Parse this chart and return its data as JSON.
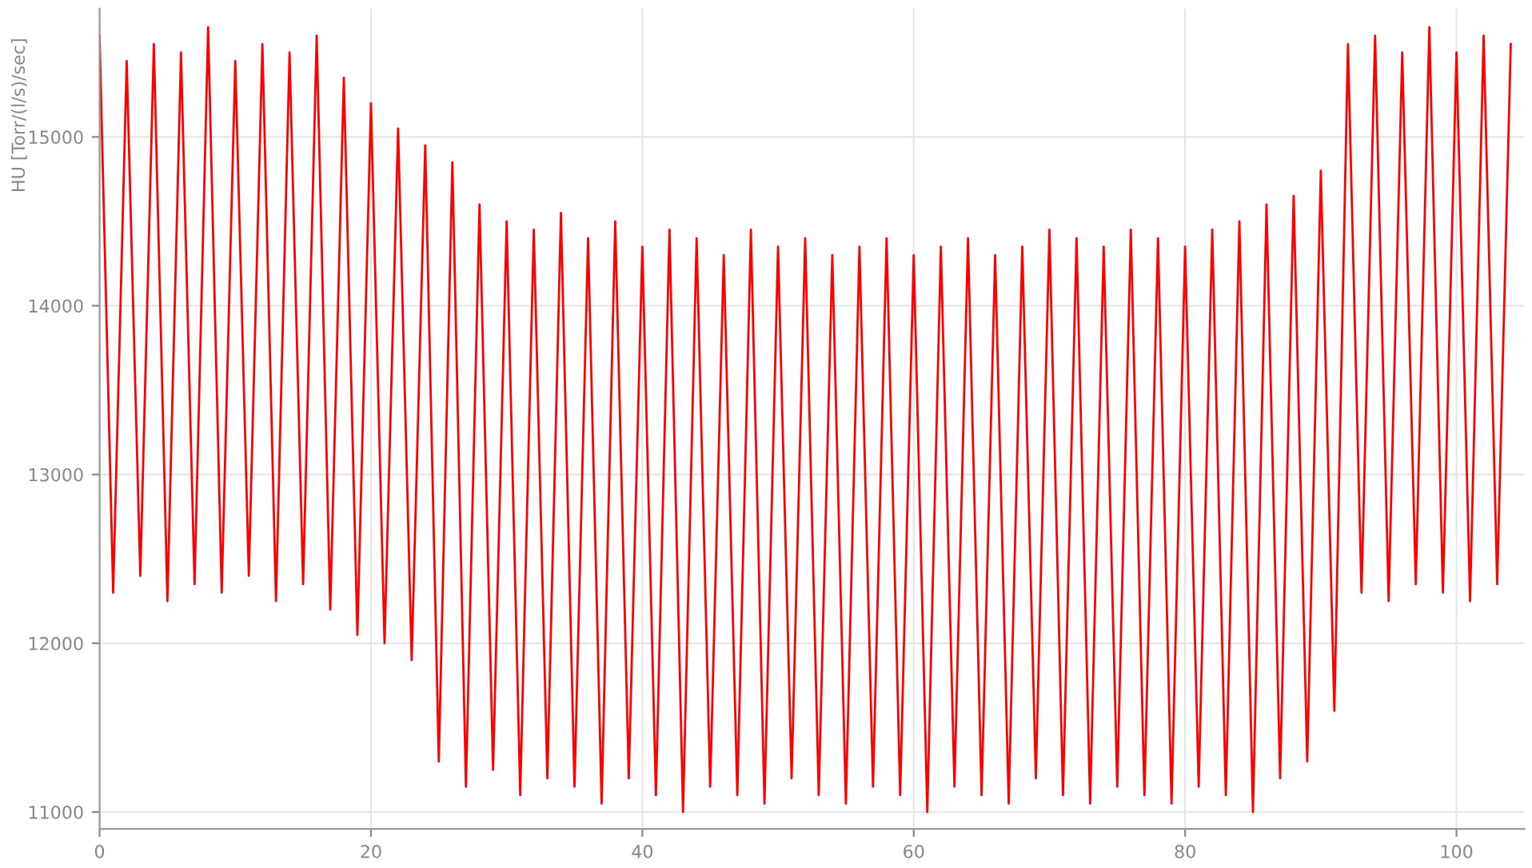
{
  "chart_data": {
    "type": "line",
    "ylabel": "HU [Torr/(l/s)/sec]",
    "x": [
      0,
      1,
      2,
      3,
      4,
      5,
      6,
      7,
      8,
      9,
      10,
      11,
      12,
      13,
      14,
      15,
      16,
      17,
      18,
      19,
      20,
      21,
      22,
      23,
      24,
      25,
      26,
      27,
      28,
      29,
      30,
      31,
      32,
      33,
      34,
      35,
      36,
      37,
      38,
      39,
      40,
      41,
      42,
      43,
      44,
      45,
      46,
      47,
      48,
      49,
      50,
      51,
      52,
      53,
      54,
      55,
      56,
      57,
      58,
      59,
      60,
      61,
      62,
      63,
      64,
      65,
      66,
      67,
      68,
      69,
      70,
      71,
      72,
      73,
      74,
      75,
      76,
      77,
      78,
      79,
      80,
      81,
      82,
      83,
      84,
      85,
      86,
      87,
      88,
      89,
      90,
      91,
      92,
      93,
      94,
      95,
      96,
      97,
      98,
      99,
      100,
      101,
      102,
      103,
      104
    ],
    "series": [
      {
        "color": "#ff0000",
        "values": [
          15600,
          12300,
          15450,
          12400,
          15550,
          12250,
          15500,
          12350,
          15650,
          12300,
          15450,
          12400,
          15550,
          12250,
          15500,
          12350,
          15600,
          12200,
          15350,
          12050,
          15200,
          12000,
          15050,
          11900,
          14950,
          11300,
          14850,
          11150,
          14600,
          11250,
          14500,
          11100,
          14450,
          11200,
          14550,
          11150,
          14400,
          11050,
          14500,
          11200,
          14350,
          11100,
          14450,
          11000,
          14400,
          11150,
          14300,
          11100,
          14450,
          11050,
          14350,
          11200,
          14400,
          11100,
          14300,
          11050,
          14350,
          11150,
          14400,
          11100,
          14300,
          11000,
          14350,
          11150,
          14400,
          11100,
          14300,
          11050,
          14350,
          11200,
          14450,
          11100,
          14400,
          11050,
          14350,
          11150,
          14450,
          11100,
          14400,
          11050,
          14350,
          11150,
          14450,
          11100,
          14500,
          11000,
          14600,
          11200,
          14650,
          11300,
          14800,
          11600,
          15550,
          12300,
          15600,
          12250,
          15500,
          12350,
          15650,
          12300,
          15500,
          12250,
          15600,
          12350,
          15550
        ]
      }
    ],
    "xlim": [
      0,
      105
    ],
    "xticks": [
      0,
      20,
      40,
      60,
      80,
      100
    ],
    "ylim": [
      10900,
      15760
    ],
    "yticks": [
      11000,
      12000,
      13000,
      14000,
      15000
    ],
    "grid": true,
    "marker": "none",
    "line_style": "solid"
  }
}
